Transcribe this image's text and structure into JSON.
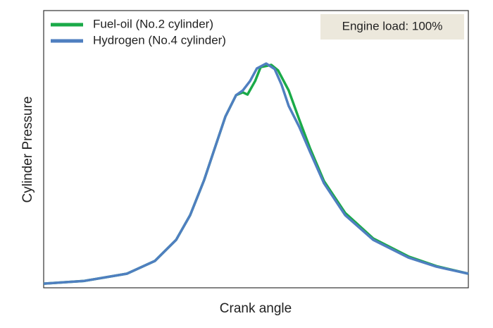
{
  "chart_data": {
    "type": "line",
    "title_annotation": "Engine load: 100%",
    "xlabel": "Crank angle",
    "ylabel": "Cylinder Pressure",
    "xlim": [
      0,
      100
    ],
    "ylim": [
      0,
      100
    ],
    "legend": "upper left",
    "series": [
      {
        "name": "Fuel-oil (No.2 cylinder)",
        "color": "#1aaa48",
        "x": [
          0,
          9.6,
          19.6,
          26.2,
          31.2,
          34.5,
          37.8,
          40.3,
          42.8,
          45.3,
          46.9,
          48.0,
          49.8,
          51.1,
          53.6,
          55.2,
          57.7,
          60.2,
          62.7,
          66.0,
          71.0,
          77.6,
          85.9,
          92.5,
          100
        ],
        "values": [
          1.5,
          2.5,
          5.1,
          9.7,
          17.3,
          26.2,
          38.9,
          50.4,
          61.8,
          69.5,
          70.5,
          69.7,
          74.6,
          79.6,
          80.4,
          78.4,
          71.2,
          60.6,
          50.4,
          38.5,
          27.0,
          17.8,
          11.3,
          7.8,
          5.1
        ]
      },
      {
        "name": "Hydrogen (No.4 cylinder)",
        "color": "#4f7fc0",
        "x": [
          0,
          9.6,
          19.6,
          26.2,
          31.2,
          34.5,
          37.8,
          40.3,
          42.8,
          45.3,
          46.9,
          48.6,
          50.2,
          52.4,
          54.4,
          56.0,
          57.7,
          60.2,
          62.7,
          66.0,
          71.0,
          77.6,
          85.9,
          92.5,
          100
        ],
        "values": [
          1.5,
          2.5,
          5.1,
          9.7,
          17.3,
          26.2,
          38.9,
          50.4,
          61.8,
          69.5,
          71.2,
          74.6,
          79.1,
          80.9,
          78.9,
          73.3,
          65.6,
          58.0,
          49.1,
          37.7,
          26.2,
          17.3,
          10.9,
          7.6,
          5.1
        ]
      }
    ]
  }
}
